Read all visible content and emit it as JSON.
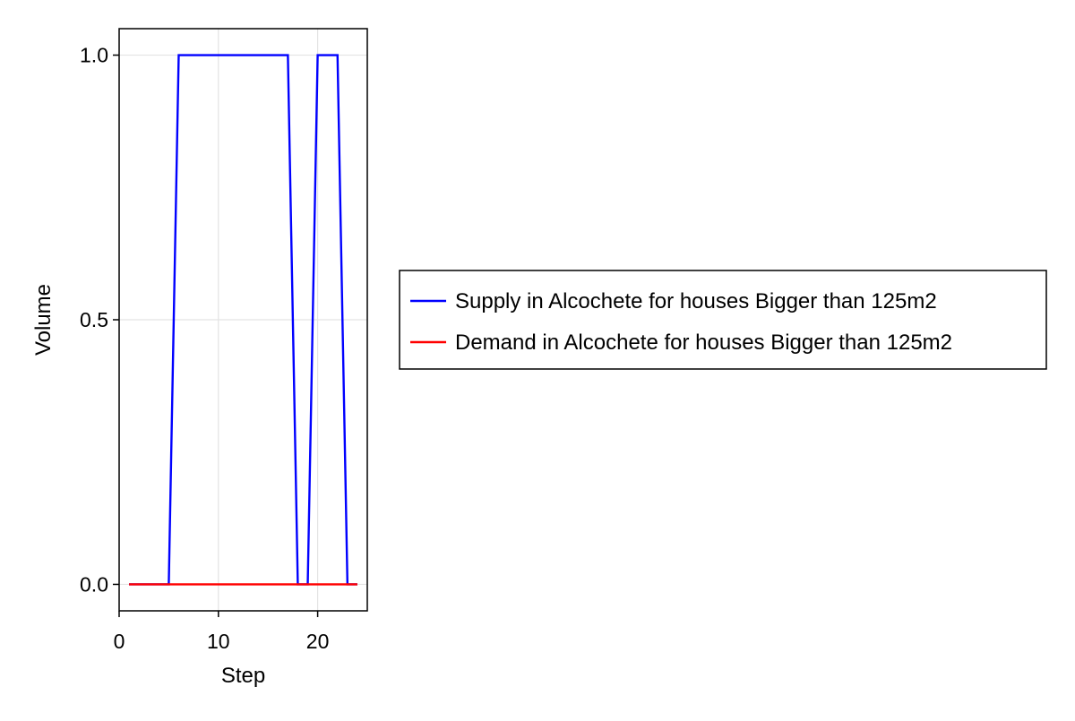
{
  "chart_data": {
    "type": "line",
    "title": "",
    "xlabel": "Step",
    "ylabel": "Volume",
    "xlim": [
      0,
      25
    ],
    "ylim": [
      -0.05,
      1.05
    ],
    "x_ticks": [
      0,
      10,
      20
    ],
    "x_tick_labels": [
      "0",
      "10",
      "20"
    ],
    "y_ticks": [
      0.0,
      0.5,
      1.0
    ],
    "y_tick_labels": [
      "0.0",
      "0.5",
      "1.0"
    ],
    "grid": true,
    "legend_position": "right",
    "series": [
      {
        "name": "Supply in Alcochete for houses Bigger than 125m2",
        "color": "#0000ff",
        "x": [
          1,
          2,
          3,
          4,
          5,
          6,
          7,
          8,
          9,
          10,
          11,
          12,
          13,
          14,
          15,
          16,
          17,
          18,
          19,
          20,
          21,
          22,
          23,
          24
        ],
        "y": [
          0,
          0,
          0,
          0,
          0,
          1,
          1,
          1,
          1,
          1,
          1,
          1,
          1,
          1,
          1,
          1,
          1,
          0,
          0,
          1,
          1,
          1,
          0,
          0
        ]
      },
      {
        "name": "Demand in Alcochete for houses Bigger than 125m2",
        "color": "#ff0000",
        "x": [
          1,
          2,
          3,
          4,
          5,
          6,
          7,
          8,
          9,
          10,
          11,
          12,
          13,
          14,
          15,
          16,
          17,
          18,
          19,
          20,
          21,
          22,
          23,
          24
        ],
        "y": [
          0,
          0,
          0,
          0,
          0,
          0,
          0,
          0,
          0,
          0,
          0,
          0,
          0,
          0,
          0,
          0,
          0,
          0,
          0,
          0,
          0,
          0,
          0,
          0
        ]
      }
    ]
  }
}
